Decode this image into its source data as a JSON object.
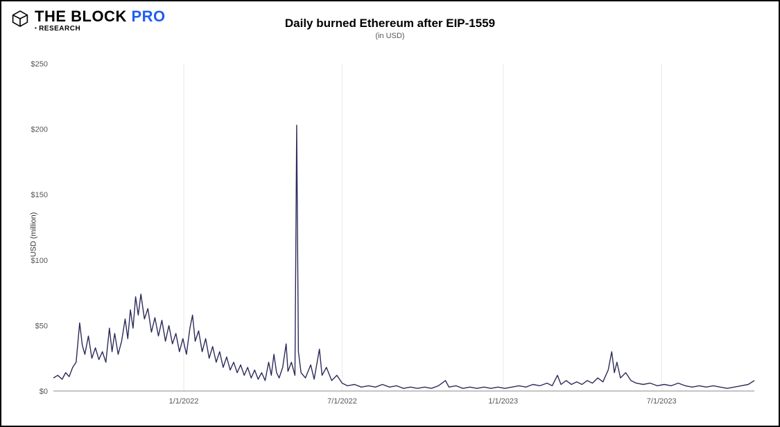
{
  "brand": {
    "name_a": "THE BLOCK",
    "name_b": "PRO",
    "sub": "RESEARCH",
    "pro_color": "#1e5ef3",
    "logo_stroke": "#000000"
  },
  "chart": {
    "type": "line",
    "title": "Daily burned Ethereum after EIP-1559",
    "subtitle": "(in USD)",
    "ylabel": "USD (million)",
    "background_color": "#ffffff",
    "grid_color": "#e8e8e8",
    "axis_color": "#888888",
    "line_color": "#2b2a5a",
    "line_width": 1.4,
    "title_fontsize": 17,
    "subtitle_fontsize": 11,
    "label_fontsize": 11,
    "tick_fontsize": 11,
    "x_start": "2021-08-05",
    "x_end": "2023-10-15",
    "xlim_days": [
      0,
      801
    ],
    "ylim": [
      0,
      250
    ],
    "ytick_step": 50,
    "ytick_prefix": "$",
    "xticks": [
      {
        "day": 149,
        "label": "1/1/2022"
      },
      {
        "day": 330,
        "label": "7/1/2022"
      },
      {
        "day": 514,
        "label": "1/1/2023"
      },
      {
        "day": 695,
        "label": "7/1/2023"
      }
    ],
    "series": [
      {
        "x": 0,
        "y": 10
      },
      {
        "x": 5,
        "y": 12
      },
      {
        "x": 10,
        "y": 9
      },
      {
        "x": 14,
        "y": 14
      },
      {
        "x": 18,
        "y": 11
      },
      {
        "x": 22,
        "y": 18
      },
      {
        "x": 26,
        "y": 22
      },
      {
        "x": 30,
        "y": 52
      },
      {
        "x": 33,
        "y": 35
      },
      {
        "x": 36,
        "y": 28
      },
      {
        "x": 40,
        "y": 42
      },
      {
        "x": 44,
        "y": 25
      },
      {
        "x": 48,
        "y": 33
      },
      {
        "x": 52,
        "y": 24
      },
      {
        "x": 56,
        "y": 30
      },
      {
        "x": 60,
        "y": 22
      },
      {
        "x": 64,
        "y": 48
      },
      {
        "x": 67,
        "y": 30
      },
      {
        "x": 70,
        "y": 44
      },
      {
        "x": 74,
        "y": 28
      },
      {
        "x": 78,
        "y": 38
      },
      {
        "x": 82,
        "y": 55
      },
      {
        "x": 85,
        "y": 40
      },
      {
        "x": 88,
        "y": 62
      },
      {
        "x": 91,
        "y": 48
      },
      {
        "x": 94,
        "y": 72
      },
      {
        "x": 97,
        "y": 58
      },
      {
        "x": 100,
        "y": 74
      },
      {
        "x": 104,
        "y": 55
      },
      {
        "x": 108,
        "y": 63
      },
      {
        "x": 112,
        "y": 45
      },
      {
        "x": 116,
        "y": 56
      },
      {
        "x": 120,
        "y": 42
      },
      {
        "x": 124,
        "y": 54
      },
      {
        "x": 128,
        "y": 38
      },
      {
        "x": 132,
        "y": 50
      },
      {
        "x": 136,
        "y": 36
      },
      {
        "x": 140,
        "y": 44
      },
      {
        "x": 144,
        "y": 30
      },
      {
        "x": 148,
        "y": 40
      },
      {
        "x": 152,
        "y": 28
      },
      {
        "x": 156,
        "y": 48
      },
      {
        "x": 159,
        "y": 58
      },
      {
        "x": 162,
        "y": 38
      },
      {
        "x": 166,
        "y": 46
      },
      {
        "x": 170,
        "y": 30
      },
      {
        "x": 174,
        "y": 40
      },
      {
        "x": 178,
        "y": 25
      },
      {
        "x": 182,
        "y": 34
      },
      {
        "x": 186,
        "y": 22
      },
      {
        "x": 190,
        "y": 30
      },
      {
        "x": 194,
        "y": 18
      },
      {
        "x": 198,
        "y": 26
      },
      {
        "x": 202,
        "y": 16
      },
      {
        "x": 206,
        "y": 22
      },
      {
        "x": 210,
        "y": 14
      },
      {
        "x": 214,
        "y": 20
      },
      {
        "x": 218,
        "y": 12
      },
      {
        "x": 222,
        "y": 18
      },
      {
        "x": 226,
        "y": 10
      },
      {
        "x": 230,
        "y": 16
      },
      {
        "x": 234,
        "y": 9
      },
      {
        "x": 238,
        "y": 14
      },
      {
        "x": 242,
        "y": 8
      },
      {
        "x": 246,
        "y": 22
      },
      {
        "x": 249,
        "y": 12
      },
      {
        "x": 252,
        "y": 28
      },
      {
        "x": 255,
        "y": 14
      },
      {
        "x": 258,
        "y": 10
      },
      {
        "x": 262,
        "y": 18
      },
      {
        "x": 266,
        "y": 36
      },
      {
        "x": 268,
        "y": 15
      },
      {
        "x": 272,
        "y": 22
      },
      {
        "x": 276,
        "y": 12
      },
      {
        "x": 278,
        "y": 203
      },
      {
        "x": 280,
        "y": 30
      },
      {
        "x": 283,
        "y": 14
      },
      {
        "x": 288,
        "y": 10
      },
      {
        "x": 294,
        "y": 20
      },
      {
        "x": 298,
        "y": 9
      },
      {
        "x": 304,
        "y": 32
      },
      {
        "x": 307,
        "y": 12
      },
      {
        "x": 312,
        "y": 18
      },
      {
        "x": 318,
        "y": 8
      },
      {
        "x": 324,
        "y": 12
      },
      {
        "x": 330,
        "y": 6
      },
      {
        "x": 336,
        "y": 4
      },
      {
        "x": 344,
        "y": 5
      },
      {
        "x": 352,
        "y": 3
      },
      {
        "x": 360,
        "y": 4
      },
      {
        "x": 368,
        "y": 3
      },
      {
        "x": 376,
        "y": 5
      },
      {
        "x": 384,
        "y": 3
      },
      {
        "x": 392,
        "y": 4
      },
      {
        "x": 400,
        "y": 2
      },
      {
        "x": 408,
        "y": 3
      },
      {
        "x": 416,
        "y": 2
      },
      {
        "x": 424,
        "y": 3
      },
      {
        "x": 432,
        "y": 2
      },
      {
        "x": 440,
        "y": 4
      },
      {
        "x": 448,
        "y": 8
      },
      {
        "x": 452,
        "y": 3
      },
      {
        "x": 460,
        "y": 4
      },
      {
        "x": 468,
        "y": 2
      },
      {
        "x": 476,
        "y": 3
      },
      {
        "x": 484,
        "y": 2
      },
      {
        "x": 492,
        "y": 3
      },
      {
        "x": 500,
        "y": 2
      },
      {
        "x": 508,
        "y": 3
      },
      {
        "x": 516,
        "y": 2
      },
      {
        "x": 524,
        "y": 3
      },
      {
        "x": 532,
        "y": 4
      },
      {
        "x": 540,
        "y": 3
      },
      {
        "x": 548,
        "y": 5
      },
      {
        "x": 556,
        "y": 4
      },
      {
        "x": 564,
        "y": 6
      },
      {
        "x": 570,
        "y": 4
      },
      {
        "x": 576,
        "y": 12
      },
      {
        "x": 580,
        "y": 5
      },
      {
        "x": 586,
        "y": 8
      },
      {
        "x": 592,
        "y": 5
      },
      {
        "x": 598,
        "y": 7
      },
      {
        "x": 604,
        "y": 5
      },
      {
        "x": 610,
        "y": 8
      },
      {
        "x": 616,
        "y": 6
      },
      {
        "x": 622,
        "y": 10
      },
      {
        "x": 628,
        "y": 7
      },
      {
        "x": 634,
        "y": 16
      },
      {
        "x": 638,
        "y": 30
      },
      {
        "x": 641,
        "y": 14
      },
      {
        "x": 644,
        "y": 22
      },
      {
        "x": 648,
        "y": 10
      },
      {
        "x": 654,
        "y": 14
      },
      {
        "x": 660,
        "y": 8
      },
      {
        "x": 666,
        "y": 6
      },
      {
        "x": 674,
        "y": 5
      },
      {
        "x": 682,
        "y": 6
      },
      {
        "x": 690,
        "y": 4
      },
      {
        "x": 698,
        "y": 5
      },
      {
        "x": 706,
        "y": 4
      },
      {
        "x": 714,
        "y": 6
      },
      {
        "x": 722,
        "y": 4
      },
      {
        "x": 730,
        "y": 3
      },
      {
        "x": 738,
        "y": 4
      },
      {
        "x": 746,
        "y": 3
      },
      {
        "x": 754,
        "y": 4
      },
      {
        "x": 762,
        "y": 3
      },
      {
        "x": 770,
        "y": 2
      },
      {
        "x": 778,
        "y": 3
      },
      {
        "x": 786,
        "y": 4
      },
      {
        "x": 794,
        "y": 5
      },
      {
        "x": 801,
        "y": 8
      }
    ]
  }
}
